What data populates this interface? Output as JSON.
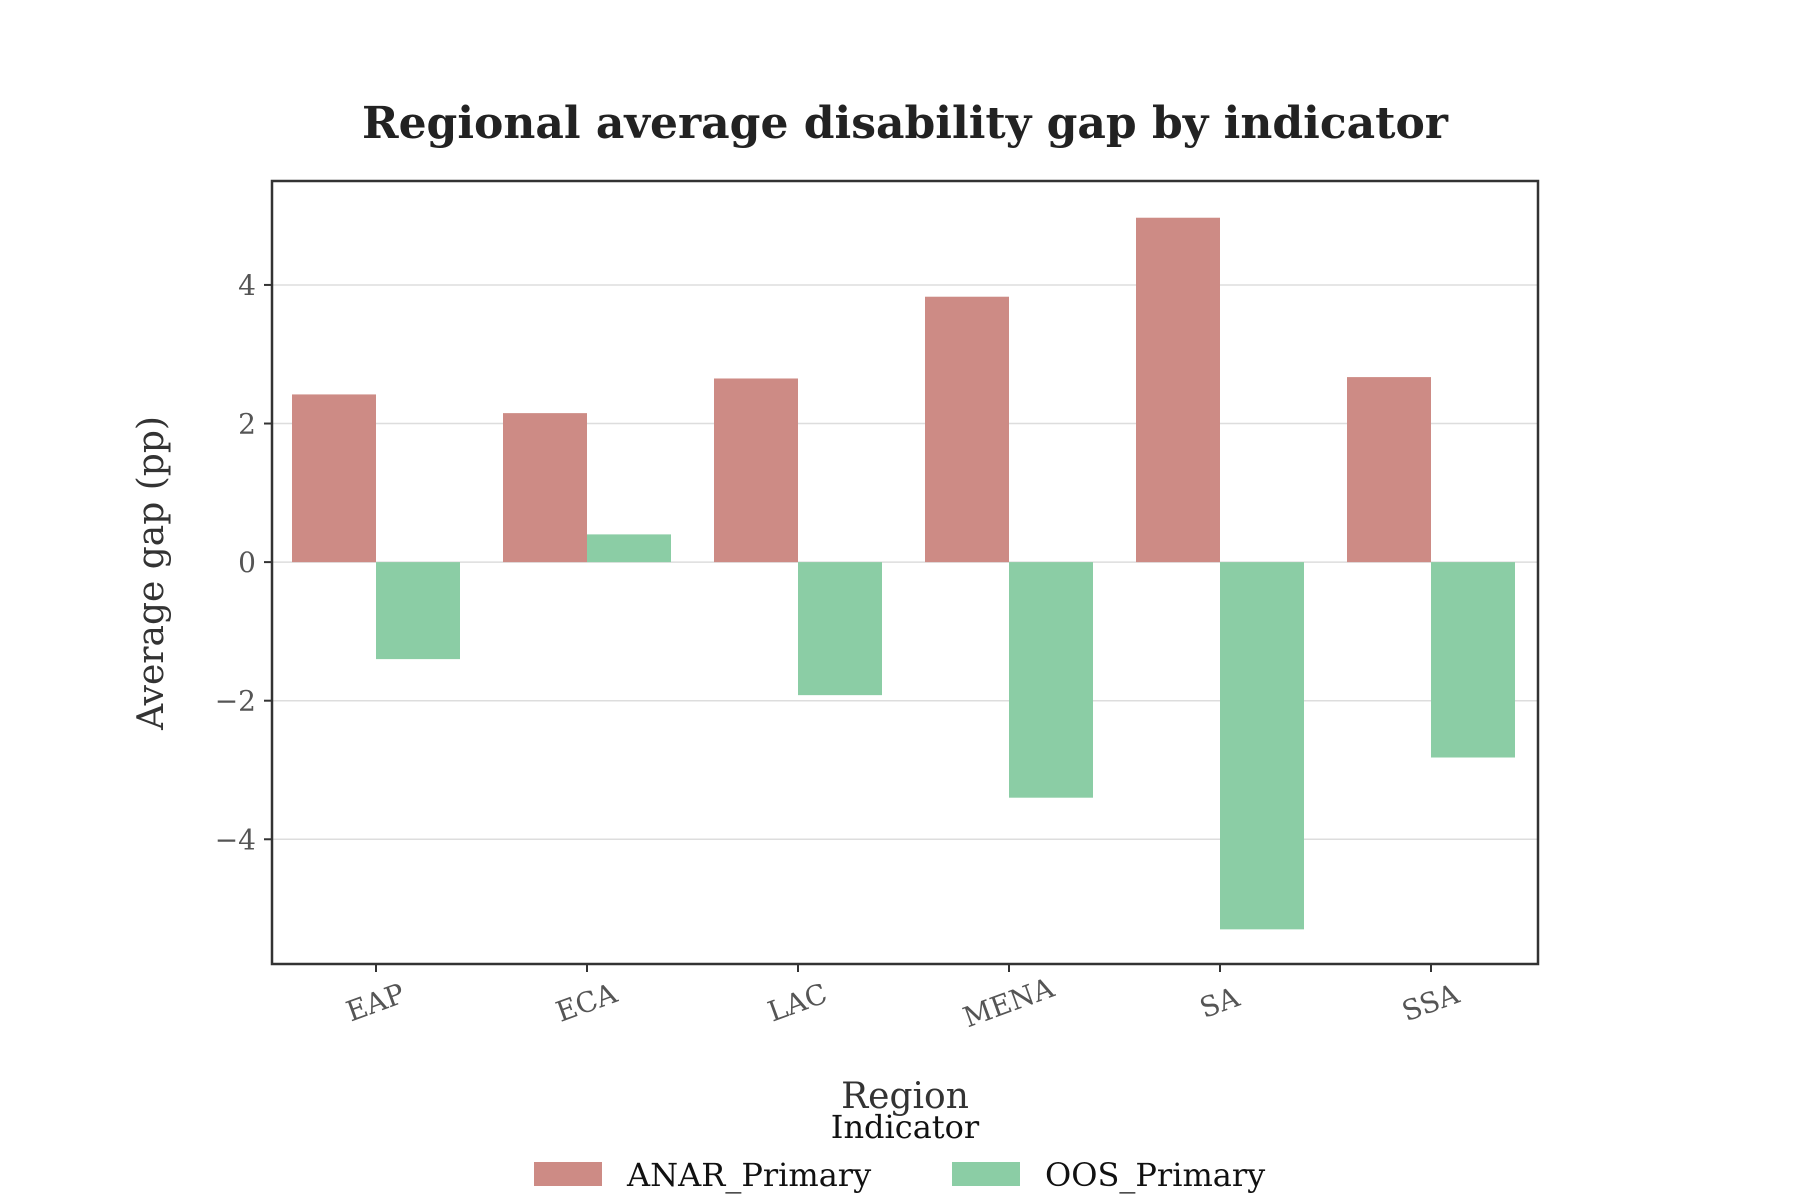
{
  "chart_data": {
    "type": "bar",
    "title": "Regional average disability gap by indicator",
    "xlabel": "Region",
    "ylabel": "Average gap (pp)",
    "categories": [
      "EAP",
      "ECA",
      "LAC",
      "MENA",
      "SA",
      "SSA"
    ],
    "series": [
      {
        "name": "ANAR_Primary",
        "color": "#cd8b85",
        "values": [
          2.42,
          2.15,
          2.65,
          3.83,
          4.97,
          2.67
        ]
      },
      {
        "name": "OOS_Primary",
        "color": "#8bcda5",
        "values": [
          -1.4,
          0.4,
          -1.92,
          -3.4,
          -5.3,
          -2.82
        ]
      }
    ],
    "ylim": [
      -5.8,
      5.5
    ],
    "yticks": [
      -4,
      -2,
      0,
      2,
      4
    ],
    "ytick_labels": [
      "−4",
      "−2",
      "0",
      "2",
      "4"
    ],
    "grid": true,
    "legend": {
      "title": "Indicator",
      "placement": "bottom-center"
    }
  }
}
